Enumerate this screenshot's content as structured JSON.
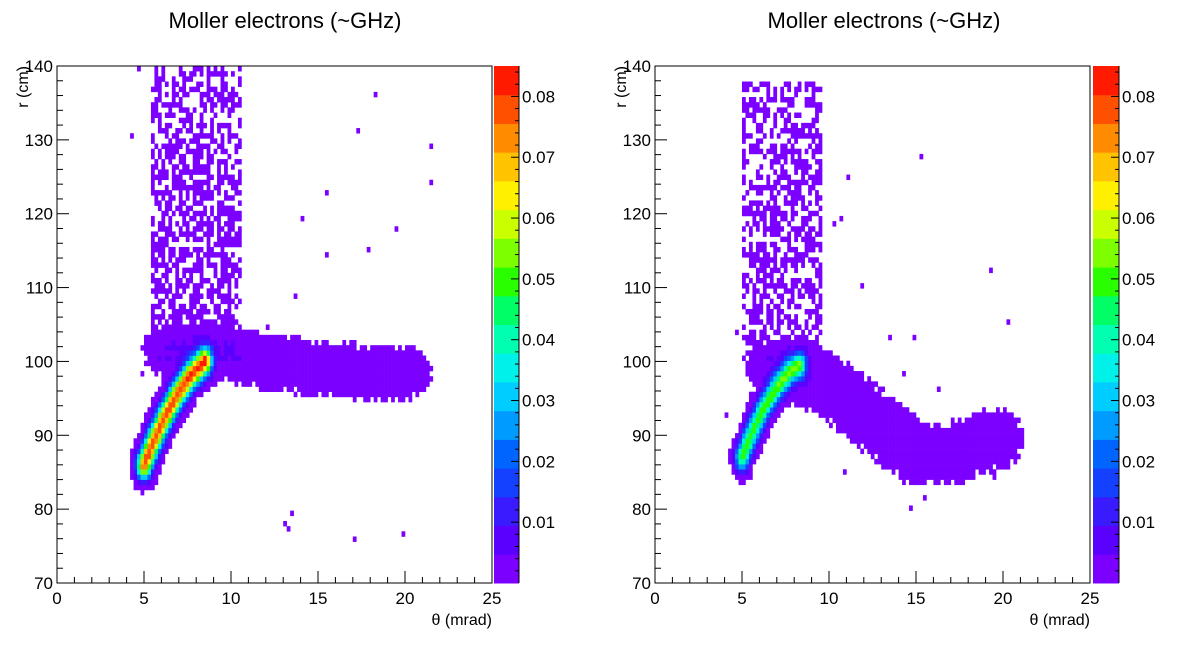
{
  "chart_data": [
    {
      "type": "heatmap",
      "title": "Moller electrons (~GHz)",
      "xlabel": "θ (mrad)",
      "ylabel": "r (cm)",
      "xlim": [
        0,
        25
      ],
      "ylim": [
        70,
        140
      ],
      "zlim": [
        0,
        0.085
      ],
      "x_ticks": [
        "0",
        "5",
        "10",
        "15",
        "20",
        "25"
      ],
      "y_ticks": [
        "70",
        "80",
        "90",
        "100",
        "110",
        "120",
        "130",
        "140"
      ],
      "z_ticks": [
        "0.01",
        "0.02",
        "0.03",
        "0.04",
        "0.05",
        "0.06",
        "0.07",
        "0.08"
      ],
      "grid": false,
      "colorbar": "right",
      "features": [
        {
          "kind": "ridge",
          "points": [
            [
              5.0,
              86
            ],
            [
              5.6,
              89.5
            ],
            [
              6.2,
              92.5
            ],
            [
              6.9,
              95.5
            ],
            [
              7.7,
              98.2
            ],
            [
              8.5,
              100.0
            ]
          ],
          "width": 0.28,
          "peak": 0.08
        },
        {
          "kind": "band",
          "points": [
            [
              6.5,
              101.5
            ],
            [
              9,
              101.5
            ],
            [
              12,
              100
            ],
            [
              15,
              99
            ],
            [
              18,
              98.5
            ],
            [
              19.8,
              98.5
            ]
          ],
          "sigma_x": 0.9,
          "sigma_y": 2.0,
          "level": 0.004
        },
        {
          "kind": "column",
          "x": [
            5.5,
            10.5
          ],
          "y": [
            100,
            140
          ],
          "level": 0.002
        }
      ]
    },
    {
      "type": "heatmap",
      "title": "Moller electrons (~GHz)",
      "xlabel": "θ  (mrad)",
      "ylabel": "r (cm)",
      "xlim": [
        0,
        25
      ],
      "ylim": [
        70,
        140
      ],
      "zlim": [
        0,
        0.085
      ],
      "x_ticks": [
        "0",
        "5",
        "10",
        "15",
        "20",
        "25"
      ],
      "y_ticks": [
        "70",
        "80",
        "90",
        "100",
        "110",
        "120",
        "130",
        "140"
      ],
      "z_ticks": [
        "0.01",
        "0.02",
        "0.03",
        "0.04",
        "0.05",
        "0.06",
        "0.07",
        "0.08"
      ],
      "grid": false,
      "colorbar": "right",
      "features": [
        {
          "kind": "ridge",
          "points": [
            [
              5.0,
              87
            ],
            [
              5.5,
              90
            ],
            [
              6.2,
              93.5
            ],
            [
              7.0,
              96.5
            ],
            [
              7.8,
              98.8
            ],
            [
              8.3,
              99.5
            ]
          ],
          "width": 0.26,
          "peak": 0.05
        },
        {
          "kind": "band",
          "points": [
            [
              7,
              99
            ],
            [
              9,
              98
            ],
            [
              11,
              95
            ],
            [
              13,
              91
            ],
            [
              15,
              87.5
            ],
            [
              17,
              87.5
            ],
            [
              19.5,
              89.5
            ]
          ],
          "sigma_x": 0.9,
          "sigma_y": 2.2,
          "level": 0.004
        },
        {
          "kind": "column",
          "x": [
            5.0,
            9.5
          ],
          "y": [
            100,
            138
          ],
          "level": 0.002
        }
      ]
    }
  ]
}
